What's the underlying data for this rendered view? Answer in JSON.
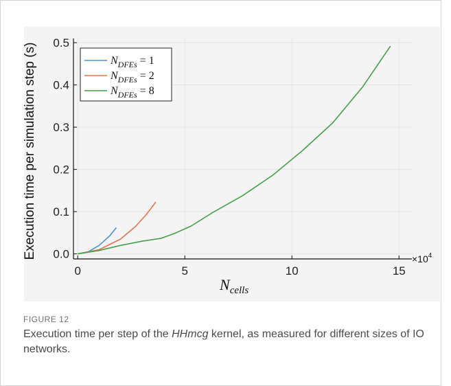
{
  "chart_data": {
    "type": "line",
    "ylabel": "Execution time per simulation step (s)",
    "xlabel_main": "N",
    "xlabel_sub": "cells",
    "x_multiplier": "×10",
    "x_multiplier_exp": "4",
    "xlim": [
      -0.2,
      15.6
    ],
    "ylim": [
      -0.012,
      0.51
    ],
    "xticks": [
      0,
      5,
      10,
      15
    ],
    "yticks": [
      0.0,
      0.1,
      0.2,
      0.3,
      0.4,
      0.5
    ],
    "ytick_labels": [
      "0.0",
      "0.1",
      "0.2",
      "0.3",
      "0.4",
      "0.5"
    ],
    "xtick_labels": [
      "0",
      "5",
      "10",
      "15"
    ],
    "grid": true,
    "legend_position": "top-left",
    "series": [
      {
        "name_main": "N",
        "name_sub": "DFEs",
        "name_rest": " = 1",
        "color": "#4b8fd1",
        "x": [
          0,
          0.5,
          1.0,
          1.5,
          1.8
        ],
        "y": [
          0,
          0.005,
          0.02,
          0.043,
          0.062
        ]
      },
      {
        "name_main": "N",
        "name_sub": "DFEs",
        "name_rest": " = 2",
        "color": "#e8714d",
        "x": [
          0,
          1.0,
          2.0,
          2.7,
          3.2,
          3.65
        ],
        "y": [
          0,
          0.01,
          0.035,
          0.065,
          0.093,
          0.123
        ]
      },
      {
        "name_main": "N",
        "name_sub": "DFEs",
        "name_rest": " = 8",
        "color": "#43a047",
        "x": [
          0,
          1.0,
          2.0,
          3.0,
          3.9,
          4.5,
          5.3,
          6.3,
          7.7,
          9.1,
          10.5,
          11.9,
          13.3,
          14.6
        ],
        "y": [
          0,
          0.008,
          0.02,
          0.03,
          0.037,
          0.048,
          0.066,
          0.098,
          0.138,
          0.186,
          0.245,
          0.31,
          0.395,
          0.492
        ]
      }
    ]
  },
  "caption": {
    "label": "FIGURE 12",
    "text_before": "Execution time per step of the ",
    "text_italic": "HHmcg",
    "text_after": " kernel, as measured for different sizes of IO networks."
  }
}
